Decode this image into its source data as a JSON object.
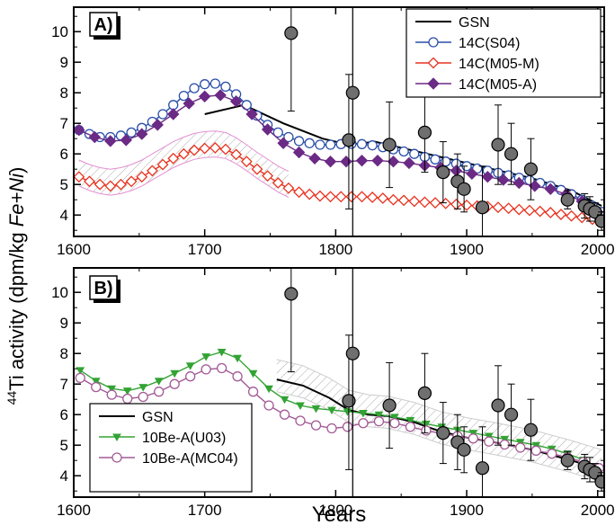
{
  "chart_data": {
    "type": "line",
    "ylabel": "Ti activity (dpm/kg Fe+Ni)",
    "ylabel_sup": "44",
    "ylabel_parts": [
      "Ti activity (dpm/kg ",
      "Fe+Ni",
      ")"
    ],
    "xlabel": "Years",
    "xlim": [
      1600,
      2005
    ],
    "ylim": [
      3.3,
      10.8
    ],
    "xticks": [
      1600,
      1700,
      1800,
      1900,
      2000
    ],
    "yticks": [
      4,
      5,
      6,
      7,
      8,
      9,
      10
    ],
    "reference_year": 1813,
    "measurements": [
      {
        "x": 1766,
        "y": 9.95,
        "lo": 7.4,
        "hi": 12.5
      },
      {
        "x": 1810,
        "y": 6.45,
        "lo": 4.2,
        "hi": 8.6
      },
      {
        "x": 1813,
        "y": 8.0,
        "lo": 2.0,
        "hi": 14.0
      },
      {
        "x": 1841,
        "y": 6.3,
        "lo": 4.9,
        "hi": 7.7
      },
      {
        "x": 1868,
        "y": 6.7,
        "lo": 5.4,
        "hi": 8.0
      },
      {
        "x": 1882,
        "y": 5.4,
        "lo": 4.4,
        "hi": 6.4
      },
      {
        "x": 1893,
        "y": 5.1,
        "lo": 4.2,
        "hi": 6.0
      },
      {
        "x": 1898,
        "y": 4.85,
        "lo": 4.1,
        "hi": 5.6
      },
      {
        "x": 1912,
        "y": 4.25,
        "lo": 2.9,
        "hi": 5.6
      },
      {
        "x": 1924,
        "y": 6.3,
        "lo": 5.0,
        "hi": 7.6
      },
      {
        "x": 1934,
        "y": 6.0,
        "lo": 5.0,
        "hi": 7.0
      },
      {
        "x": 1949,
        "y": 5.5,
        "lo": 4.5,
        "hi": 6.5
      },
      {
        "x": 1977,
        "y": 4.5,
        "lo": 4.2,
        "hi": 4.8
      },
      {
        "x": 1990,
        "y": 4.3,
        "lo": 3.9,
        "hi": 4.7
      },
      {
        "x": 1994,
        "y": 4.2,
        "lo": 3.8,
        "hi": 4.6
      },
      {
        "x": 1998,
        "y": 4.1,
        "lo": 3.8,
        "hi": 4.4
      },
      {
        "x": 2003,
        "y": 3.8,
        "lo": 3.5,
        "hi": 4.1
      }
    ],
    "panels": [
      {
        "tag": "A)",
        "legend_labels": [
          "GSN",
          "14C(S04)",
          "14C(M05-M)",
          "14C(M05-A)"
        ],
        "series": [
          {
            "name": "GSN",
            "color": "#000000",
            "marker": "none",
            "x": [
              1700,
              1730,
              1760,
              1790,
              1810,
              1830,
              1860,
              1890,
              1920,
              1950,
              1980,
              2003
            ],
            "y": [
              7.3,
              7.6,
              7.0,
              6.5,
              6.3,
              6.4,
              6.1,
              5.8,
              5.5,
              5.2,
              4.8,
              4.3
            ]
          },
          {
            "name": "14C(S04)",
            "color": "#2b4fa8",
            "marker": "open-circle",
            "x": [
              1604,
              1612,
              1620,
              1628,
              1636,
              1644,
              1652,
              1660,
              1668,
              1676,
              1684,
              1692,
              1700,
              1708,
              1716,
              1724,
              1732,
              1740,
              1748,
              1756,
              1764,
              1772,
              1780,
              1788,
              1796,
              1804,
              1812,
              1820,
              1828,
              1836,
              1844,
              1852,
              1860,
              1868,
              1876,
              1884,
              1892,
              1900,
              1908,
              1916,
              1924,
              1932,
              1940,
              1948,
              1956,
              1964,
              1972,
              1980,
              1988,
              1996,
              2003
            ],
            "y": [
              6.78,
              6.65,
              6.55,
              6.55,
              6.6,
              6.7,
              6.85,
              7.05,
              7.3,
              7.6,
              7.9,
              8.15,
              8.28,
              8.3,
              8.2,
              7.95,
              7.6,
              7.25,
              6.95,
              6.7,
              6.55,
              6.42,
              6.35,
              6.3,
              6.3,
              6.32,
              6.33,
              6.32,
              6.28,
              6.22,
              6.15,
              6.08,
              6.0,
              5.9,
              5.82,
              5.75,
              5.68,
              5.6,
              5.52,
              5.45,
              5.38,
              5.3,
              5.22,
              5.14,
              5.05,
              4.95,
              4.82,
              4.68,
              4.5,
              4.3,
              4.1
            ]
          },
          {
            "name": "14C(M05-M)",
            "color": "#e8321e",
            "marker": "open-diamond",
            "x": [
              1604,
              1612,
              1620,
              1628,
              1636,
              1644,
              1652,
              1660,
              1668,
              1676,
              1684,
              1692,
              1700,
              1708,
              1716,
              1724,
              1732,
              1740,
              1748,
              1756,
              1764,
              1772,
              1780,
              1788,
              1796,
              1804,
              1812,
              1820,
              1828,
              1836,
              1844,
              1852,
              1860,
              1868,
              1876,
              1884,
              1892,
              1900,
              1908,
              1916,
              1924,
              1932,
              1940,
              1948,
              1956,
              1964,
              1972,
              1980,
              1988,
              1996,
              2003
            ],
            "y": [
              5.25,
              5.1,
              5.0,
              4.95,
              5.0,
              5.1,
              5.25,
              5.45,
              5.65,
              5.85,
              6.0,
              6.12,
              6.18,
              6.2,
              6.15,
              5.98,
              5.75,
              5.5,
              5.28,
              5.05,
              4.88,
              4.75,
              4.68,
              4.62,
              4.6,
              4.6,
              4.6,
              4.6,
              4.58,
              4.55,
              4.5,
              4.48,
              4.45,
              4.42,
              4.4,
              4.38,
              4.35,
              4.32,
              4.3,
              4.28,
              4.25,
              4.22,
              4.18,
              4.15,
              4.12,
              4.08,
              4.02,
              3.97,
              3.92,
              3.86,
              3.8
            ]
          },
          {
            "name": "14C(M05-A)",
            "color": "#6b2a85",
            "marker": "filled-diamond",
            "x": [
              1604,
              1616,
              1628,
              1640,
              1652,
              1664,
              1676,
              1688,
              1700,
              1712,
              1724,
              1736,
              1748,
              1760,
              1772,
              1784,
              1796,
              1808,
              1820,
              1832,
              1844,
              1856,
              1868,
              1880,
              1892,
              1904,
              1916,
              1928,
              1940,
              1952,
              1964,
              1976,
              1988,
              2000
            ],
            "y": [
              6.78,
              6.55,
              6.42,
              6.45,
              6.65,
              6.95,
              7.3,
              7.65,
              7.88,
              7.92,
              7.72,
              7.3,
              6.8,
              6.35,
              6.05,
              5.85,
              5.75,
              5.75,
              5.78,
              5.78,
              5.75,
              5.7,
              5.62,
              5.55,
              5.45,
              5.35,
              5.25,
              5.15,
              5.05,
              4.95,
              4.85,
              4.68,
              4.45,
              4.1
            ]
          }
        ]
      },
      {
        "tag": "B)",
        "legend_labels": [
          "GSN",
          "10Be-A(U03)",
          "10Be-A(MC04)"
        ],
        "series": [
          {
            "name": "GSN",
            "color": "#000000",
            "marker": "none",
            "x": [
              1755,
              1775,
              1795,
              1810,
              1825,
              1840,
              1860,
              1880,
              1900,
              1920,
              1950,
              1980,
              2003
            ],
            "y": [
              7.15,
              6.95,
              6.55,
              6.15,
              6.0,
              5.95,
              5.75,
              5.45,
              5.25,
              5.1,
              4.85,
              4.5,
              4.2
            ]
          },
          {
            "name": "10Be-A(U03)",
            "color": "#33a334",
            "marker": "filled-triangle-down",
            "x": [
              1605,
              1617,
              1629,
              1641,
              1653,
              1665,
              1677,
              1689,
              1701,
              1713,
              1725,
              1737,
              1749,
              1761,
              1773,
              1785,
              1797,
              1809,
              1821,
              1833,
              1845,
              1857,
              1869,
              1881,
              1893,
              1905,
              1917,
              1929,
              1941,
              1953,
              1965,
              1977,
              1989,
              2001
            ],
            "y": [
              7.45,
              7.1,
              6.85,
              6.78,
              6.9,
              7.1,
              7.35,
              7.6,
              7.9,
              8.05,
              7.85,
              7.35,
              6.85,
              6.5,
              6.3,
              6.2,
              6.15,
              6.1,
              6.05,
              6.0,
              5.92,
              5.82,
              5.7,
              5.6,
              5.5,
              5.4,
              5.3,
              5.2,
              5.1,
              5.0,
              4.88,
              4.72,
              4.52,
              4.25
            ]
          },
          {
            "name": "10Be-A(MC04)",
            "color": "#a35a95",
            "marker": "open-circle",
            "x": [
              1605,
              1617,
              1629,
              1641,
              1653,
              1665,
              1677,
              1689,
              1701,
              1713,
              1725,
              1737,
              1749,
              1761,
              1773,
              1785,
              1797,
              1809,
              1821,
              1833,
              1845,
              1857,
              1869,
              1881,
              1893,
              1905,
              1917,
              1929,
              1941,
              1953,
              1965,
              1977,
              1989,
              2001
            ],
            "y": [
              7.2,
              6.9,
              6.65,
              6.52,
              6.58,
              6.75,
              7.0,
              7.25,
              7.48,
              7.52,
              7.25,
              6.75,
              6.3,
              6.0,
              5.8,
              5.65,
              5.55,
              5.6,
              5.72,
              5.78,
              5.72,
              5.6,
              5.48,
              5.38,
              5.3,
              5.22,
              5.12,
              5.02,
              4.92,
              4.82,
              4.72,
              4.6,
              4.45,
              4.25
            ]
          }
        ]
      }
    ]
  }
}
